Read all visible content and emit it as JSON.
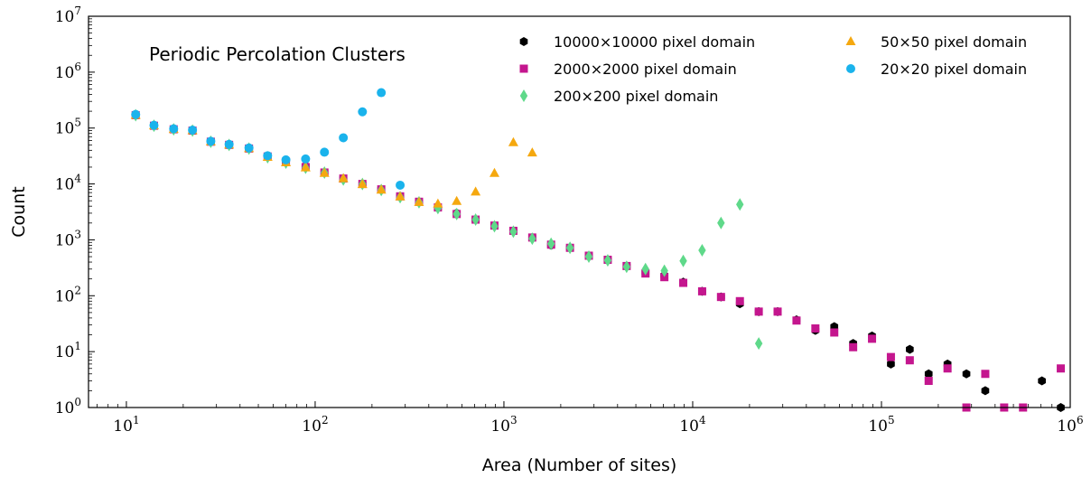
{
  "chart_data": {
    "type": "scatter",
    "title": "Periodic Percolation Clusters",
    "xlabel": "Area (Number of sites)",
    "ylabel": "Count",
    "xscale": "log",
    "yscale": "log",
    "xlim": [
      6.3,
      1000000
    ],
    "ylim": [
      1,
      10000000
    ],
    "grid": false,
    "legend_position": "top-right",
    "legend_columns": 2,
    "x_ticks": [
      {
        "value": 10,
        "base": "10",
        "exp": "1"
      },
      {
        "value": 100,
        "base": "10",
        "exp": "2"
      },
      {
        "value": 1000,
        "base": "10",
        "exp": "3"
      },
      {
        "value": 10000,
        "base": "10",
        "exp": "4"
      },
      {
        "value": 100000,
        "base": "10",
        "exp": "5"
      },
      {
        "value": 1000000,
        "base": "10",
        "exp": "6"
      }
    ],
    "y_ticks": [
      {
        "value": 1,
        "base": "10",
        "exp": "0"
      },
      {
        "value": 10,
        "base": "10",
        "exp": "1"
      },
      {
        "value": 100,
        "base": "10",
        "exp": "2"
      },
      {
        "value": 1000,
        "base": "10",
        "exp": "3"
      },
      {
        "value": 10000,
        "base": "10",
        "exp": "4"
      },
      {
        "value": 100000,
        "base": "10",
        "exp": "5"
      },
      {
        "value": 1000000,
        "base": "10",
        "exp": "6"
      },
      {
        "value": 10000000,
        "base": "10",
        "exp": "7"
      }
    ],
    "series": [
      {
        "name": "10000×10000 pixel domain",
        "marker": "hexagon",
        "color": "#000000",
        "points": [
          [
            11.2,
            170000
          ],
          [
            14,
            110000
          ],
          [
            17.8,
            95000
          ],
          [
            22.4,
            90000
          ],
          [
            28,
            58000
          ],
          [
            35,
            50000
          ],
          [
            44.6,
            43000
          ],
          [
            56,
            31000
          ],
          [
            70,
            25000
          ],
          [
            89,
            21000
          ],
          [
            112,
            16000
          ],
          [
            141,
            12500
          ],
          [
            178,
            10000
          ],
          [
            224,
            8000
          ],
          [
            282,
            6000
          ],
          [
            355,
            4800
          ],
          [
            447,
            3800
          ],
          [
            562,
            3000
          ],
          [
            708,
            2300
          ],
          [
            891,
            1800
          ],
          [
            1122,
            1450
          ],
          [
            1413,
            1100
          ],
          [
            1778,
            800
          ],
          [
            2239,
            720
          ],
          [
            2818,
            520
          ],
          [
            3548,
            440
          ],
          [
            4467,
            340
          ],
          [
            5623,
            260
          ],
          [
            7079,
            230
          ],
          [
            8913,
            175
          ],
          [
            11220,
            120
          ],
          [
            14125,
            95
          ],
          [
            17783,
            72
          ],
          [
            22387,
            52
          ],
          [
            28184,
            52
          ],
          [
            35481,
            37
          ],
          [
            44668,
            24
          ],
          [
            56234,
            28
          ],
          [
            70795,
            14
          ],
          [
            89125,
            19
          ],
          [
            112202,
            6
          ],
          [
            141254,
            11
          ],
          [
            177828,
            4
          ],
          [
            223872,
            6
          ],
          [
            281838,
            4
          ],
          [
            354813,
            2
          ],
          [
            707946,
            3
          ],
          [
            891251,
            1
          ]
        ]
      },
      {
        "name": "2000×2000 pixel domain",
        "marker": "square",
        "color": "#c4168e",
        "points": [
          [
            11.2,
            170000
          ],
          [
            14,
            110000
          ],
          [
            17.8,
            95000
          ],
          [
            22.4,
            90000
          ],
          [
            28,
            57000
          ],
          [
            35,
            50000
          ],
          [
            44.6,
            43000
          ],
          [
            56,
            31000
          ],
          [
            70,
            25000
          ],
          [
            89,
            20000
          ],
          [
            112,
            16000
          ],
          [
            141,
            12500
          ],
          [
            178,
            10000
          ],
          [
            224,
            8000
          ],
          [
            282,
            6000
          ],
          [
            355,
            4800
          ],
          [
            447,
            3800
          ],
          [
            562,
            2900
          ],
          [
            708,
            2300
          ],
          [
            891,
            1800
          ],
          [
            1122,
            1450
          ],
          [
            1413,
            1100
          ],
          [
            1778,
            820
          ],
          [
            2239,
            720
          ],
          [
            2818,
            520
          ],
          [
            3548,
            440
          ],
          [
            4467,
            340
          ],
          [
            5623,
            250
          ],
          [
            7079,
            215
          ],
          [
            8913,
            170
          ],
          [
            11220,
            120
          ],
          [
            14125,
            95
          ],
          [
            17783,
            80
          ],
          [
            22387,
            52
          ],
          [
            28184,
            52
          ],
          [
            35481,
            36
          ],
          [
            44668,
            26
          ],
          [
            56234,
            22
          ],
          [
            70795,
            12
          ],
          [
            89125,
            17
          ],
          [
            112202,
            8
          ],
          [
            141254,
            7
          ],
          [
            177828,
            3
          ],
          [
            223872,
            5
          ],
          [
            281838,
            1
          ],
          [
            354813,
            4
          ],
          [
            446684,
            1
          ],
          [
            562341,
            1
          ],
          [
            891251,
            5
          ]
        ]
      },
      {
        "name": "200×200 pixel domain",
        "marker": "diamond",
        "color": "#5fd98a",
        "points": [
          [
            11.2,
            170000
          ],
          [
            14,
            110000
          ],
          [
            17.8,
            95000
          ],
          [
            22.4,
            90000
          ],
          [
            28,
            57000
          ],
          [
            35,
            50000
          ],
          [
            44.6,
            43000
          ],
          [
            56,
            30000
          ],
          [
            70,
            24000
          ],
          [
            89,
            19500
          ],
          [
            112,
            16000
          ],
          [
            141,
            12000
          ],
          [
            178,
            10000
          ],
          [
            224,
            7800
          ],
          [
            282,
            5800
          ],
          [
            355,
            4700
          ],
          [
            447,
            3700
          ],
          [
            562,
            2900
          ],
          [
            708,
            2300
          ],
          [
            891,
            1750
          ],
          [
            1122,
            1400
          ],
          [
            1413,
            1050
          ],
          [
            1778,
            850
          ],
          [
            2239,
            720
          ],
          [
            2818,
            500
          ],
          [
            3548,
            430
          ],
          [
            4467,
            330
          ],
          [
            5623,
            300
          ],
          [
            7079,
            280
          ],
          [
            8913,
            420
          ],
          [
            11220,
            650
          ],
          [
            14125,
            2000
          ],
          [
            17783,
            4300
          ],
          [
            22387,
            14
          ]
        ]
      },
      {
        "name": "50×50 pixel domain",
        "marker": "triangle",
        "color": "#f5a80f",
        "points": [
          [
            11.2,
            170000
          ],
          [
            14,
            110000
          ],
          [
            17.8,
            95000
          ],
          [
            22.4,
            90000
          ],
          [
            28,
            57000
          ],
          [
            35,
            50000
          ],
          [
            44.6,
            43000
          ],
          [
            56,
            30000
          ],
          [
            70,
            24000
          ],
          [
            89,
            19500
          ],
          [
            112,
            15500
          ],
          [
            141,
            12500
          ],
          [
            178,
            9800
          ],
          [
            224,
            7800
          ],
          [
            282,
            5900
          ],
          [
            355,
            4700
          ],
          [
            447,
            4400
          ],
          [
            562,
            4900
          ],
          [
            708,
            7200
          ],
          [
            891,
            15500
          ],
          [
            1122,
            55000
          ],
          [
            1413,
            36000
          ]
        ]
      },
      {
        "name": "20×20 pixel domain",
        "marker": "circle",
        "color": "#1ab3ec",
        "points": [
          [
            11.2,
            175000
          ],
          [
            14,
            112000
          ],
          [
            17.8,
            97000
          ],
          [
            22.4,
            92000
          ],
          [
            28,
            58000
          ],
          [
            35,
            51000
          ],
          [
            44.6,
            44000
          ],
          [
            56,
            32000
          ],
          [
            70,
            27000
          ],
          [
            89,
            28000
          ],
          [
            112,
            37000
          ],
          [
            141,
            67000
          ],
          [
            178,
            195000
          ],
          [
            224,
            430000
          ],
          [
            282,
            9500
          ]
        ]
      }
    ]
  }
}
